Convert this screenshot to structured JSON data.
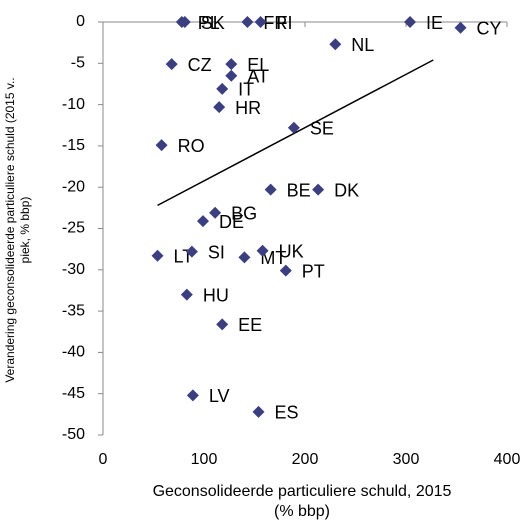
{
  "chart_data": {
    "type": "scatter",
    "x_title": [
      "Geconsolideerde particuliere schuld, 2015",
      "(% bbp)"
    ],
    "y_title": [
      "Verandering  geconsolideerde particuliere schuld (2015 v..",
      "piek, % bbp)"
    ],
    "xlim": [
      0,
      400
    ],
    "xticks": [
      0,
      100,
      200,
      300,
      400
    ],
    "ylim": [
      -50,
      0
    ],
    "yticks": [
      0,
      -5,
      -10,
      -15,
      -20,
      -25,
      -30,
      -35,
      -40,
      -45,
      -50
    ],
    "point_labels": [
      "PL",
      "SK",
      "FR",
      "FI",
      "IE",
      "CY",
      "NL",
      "CZ",
      "EL",
      "AT",
      "IT",
      "HR",
      "SE",
      "RO",
      "BE",
      "DK",
      "BG",
      "DE",
      "LT",
      "SI",
      "MT",
      "UK",
      "PT",
      "HU",
      "EE",
      "LV",
      "ES"
    ],
    "x": [
      78,
      81,
      143,
      156,
      304,
      354,
      230,
      68,
      127,
      127,
      118,
      115,
      189,
      58,
      166,
      213,
      111,
      99,
      54,
      88,
      140,
      158,
      181,
      83,
      118,
      89,
      154
    ],
    "series": [
      {
        "color": "#3b3f80",
        "values": [
          0,
          0,
          0,
          0,
          0,
          -0.7,
          -2.7,
          -5.1,
          -5.1,
          -6.5,
          -8.1,
          -10.3,
          -12.8,
          -14.9,
          -20.3,
          -20.3,
          -23.1,
          -24.1,
          -28.3,
          -27.8,
          -28.5,
          -27.7,
          -30.1,
          -33,
          -36.6,
          -45.2,
          -47.2
        ]
      }
    ],
    "trendline": {
      "color": "#000000",
      "x": [
        54,
        327
      ],
      "values": [
        -22.2,
        -4.6
      ]
    }
  }
}
